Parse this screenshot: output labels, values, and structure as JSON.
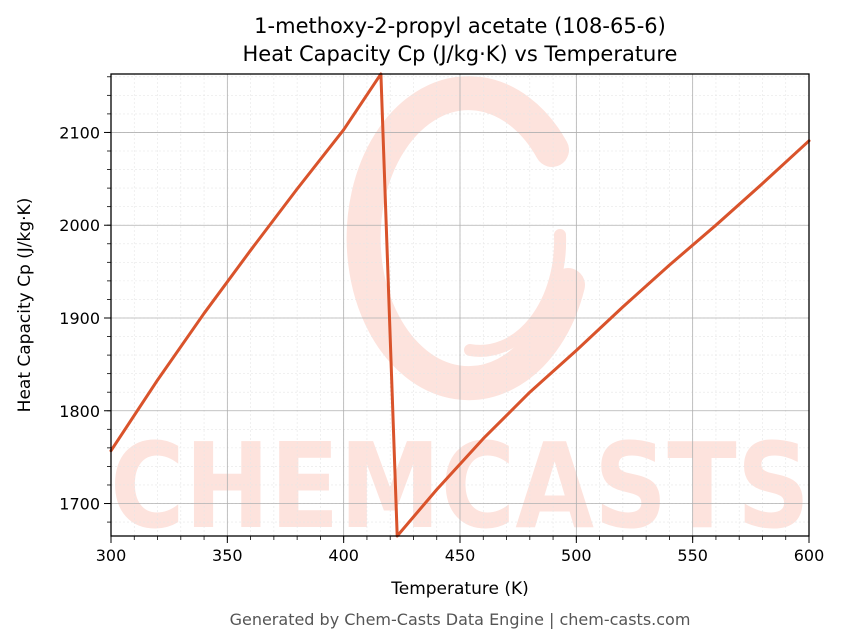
{
  "chart_data": {
    "type": "line",
    "title": "1-methoxy-2-propyl acetate (108-65-6)",
    "subtitle": "Heat Capacity Cp (J/kg·K) vs Temperature",
    "xlabel": "Temperature (K)",
    "ylabel": "Heat Capacity Cp (J/kg·K)",
    "xlim": [
      300,
      600
    ],
    "ylim": [
      1665,
      2163
    ],
    "xticks": [
      300,
      350,
      400,
      450,
      500,
      550,
      600
    ],
    "yticks": [
      1700,
      1800,
      1900,
      2000,
      2100
    ],
    "grid": true,
    "series_color": "#d9532b",
    "series": [
      {
        "values": [
          [
            300,
            1757
          ],
          [
            320,
            1833
          ],
          [
            340,
            1905
          ],
          [
            360,
            1973
          ],
          [
            380,
            2039
          ],
          [
            400,
            2103
          ],
          [
            416,
            2163
          ],
          [
            423,
            1665
          ],
          [
            440,
            1715
          ],
          [
            460,
            1770
          ],
          [
            480,
            1820
          ],
          [
            500,
            1865
          ],
          [
            520,
            1912
          ],
          [
            540,
            1957
          ],
          [
            560,
            2000
          ],
          [
            580,
            2045
          ],
          [
            600,
            2091
          ]
        ]
      }
    ]
  },
  "watermark": "CHEMCASTS",
  "footer": "Generated by Chem-Casts Data Engine | chem-casts.com"
}
